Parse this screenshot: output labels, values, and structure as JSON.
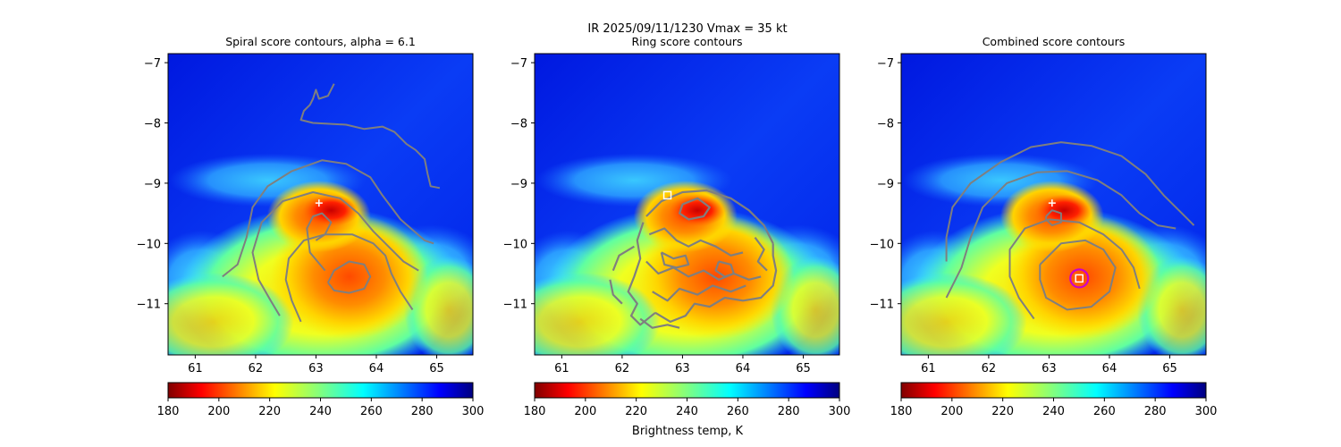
{
  "figure": {
    "suptitle": "IR  2025/09/11/1230    Vmax = 35 kt",
    "colorbar_label": "Brightness temp, K"
  },
  "colors": {
    "contour": "#7f7f7f",
    "marker": "#ffffff",
    "center_circle": "#cc00cc",
    "background": "#ffffff"
  },
  "chart_data": [
    {
      "type": "heatmap",
      "title": "Spiral score contours, alpha =  6.1",
      "xlim": [
        60.55,
        65.6
      ],
      "ylim": [
        -11.85,
        -6.85
      ],
      "xticks": [
        "61",
        "62",
        "63",
        "64",
        "65"
      ],
      "yticks": [
        "-7",
        "-8",
        "-9",
        "-10",
        "-11"
      ],
      "colormap": "jet_r",
      "clim": [
        180,
        300
      ],
      "colorbar_ticks": [
        "180",
        "200",
        "220",
        "240",
        "260",
        "280",
        "300"
      ],
      "markers": [
        {
          "kind": "plus",
          "lon": 63.05,
          "lat": -9.33
        }
      ],
      "contours": [
        [
          [
            61.45,
            -10.55
          ],
          [
            61.7,
            -10.35
          ],
          [
            61.85,
            -9.9
          ],
          [
            61.95,
            -9.4
          ],
          [
            62.2,
            -9.05
          ],
          [
            62.6,
            -8.8
          ],
          [
            63.1,
            -8.62
          ],
          [
            63.5,
            -8.68
          ],
          [
            63.9,
            -8.9
          ],
          [
            64.1,
            -9.2
          ],
          [
            64.4,
            -9.6
          ],
          [
            64.8,
            -9.95
          ],
          [
            64.95,
            -10.0
          ]
        ],
        [
          [
            62.4,
            -11.2
          ],
          [
            62.25,
            -10.95
          ],
          [
            62.05,
            -10.6
          ],
          [
            61.95,
            -10.15
          ],
          [
            62.1,
            -9.65
          ],
          [
            62.45,
            -9.3
          ],
          [
            62.95,
            -9.15
          ],
          [
            63.4,
            -9.25
          ],
          [
            63.7,
            -9.5
          ],
          [
            63.95,
            -9.8
          ],
          [
            64.2,
            -10.05
          ],
          [
            64.45,
            -10.3
          ],
          [
            64.7,
            -10.45
          ]
        ],
        [
          [
            62.75,
            -11.3
          ],
          [
            62.6,
            -10.95
          ],
          [
            62.5,
            -10.6
          ],
          [
            62.55,
            -10.25
          ],
          [
            62.8,
            -9.95
          ],
          [
            63.15,
            -9.85
          ],
          [
            63.6,
            -9.85
          ],
          [
            63.95,
            -10.0
          ],
          [
            64.15,
            -10.2
          ],
          [
            64.25,
            -10.5
          ],
          [
            64.4,
            -10.8
          ],
          [
            64.6,
            -11.1
          ]
        ],
        [
          [
            63.2,
            -10.65
          ],
          [
            63.3,
            -10.45
          ],
          [
            63.55,
            -10.3
          ],
          [
            63.8,
            -10.35
          ],
          [
            63.9,
            -10.55
          ],
          [
            63.8,
            -10.75
          ],
          [
            63.55,
            -10.82
          ],
          [
            63.3,
            -10.78
          ],
          [
            63.2,
            -10.65
          ]
        ],
        [
          [
            63.15,
            -10.45
          ],
          [
            62.9,
            -10.15
          ],
          [
            62.85,
            -9.75
          ],
          [
            62.95,
            -9.55
          ],
          [
            63.1,
            -9.5
          ],
          [
            63.25,
            -9.65
          ],
          [
            63.15,
            -9.85
          ],
          [
            63.0,
            -9.95
          ]
        ],
        [
          [
            63.3,
            -7.35
          ],
          [
            63.2,
            -7.55
          ],
          [
            63.05,
            -7.6
          ],
          [
            63.0,
            -7.45
          ],
          [
            62.95,
            -7.6
          ],
          [
            62.9,
            -7.7
          ],
          [
            62.8,
            -7.8
          ],
          [
            62.75,
            -7.95
          ],
          [
            62.95,
            -8.0
          ],
          [
            63.5,
            -8.03
          ],
          [
            63.8,
            -8.1
          ],
          [
            64.1,
            -8.06
          ],
          [
            64.3,
            -8.15
          ],
          [
            64.5,
            -8.35
          ],
          [
            64.65,
            -8.45
          ],
          [
            64.8,
            -8.6
          ],
          [
            64.85,
            -8.85
          ],
          [
            64.9,
            -9.05
          ],
          [
            65.05,
            -9.08
          ]
        ]
      ]
    },
    {
      "type": "heatmap",
      "title": "Ring score contours",
      "xlim": [
        60.55,
        65.6
      ],
      "ylim": [
        -11.85,
        -6.85
      ],
      "xticks": [
        "61",
        "62",
        "63",
        "64",
        "65"
      ],
      "yticks": [
        "-7",
        "-8",
        "-9",
        "-10",
        "-11"
      ],
      "colormap": "jet_r",
      "clim": [
        180,
        300
      ],
      "colorbar_ticks": [
        "180",
        "200",
        "220",
        "240",
        "260",
        "280",
        "300"
      ],
      "markers": [
        {
          "kind": "square",
          "lon": 62.75,
          "lat": -9.2
        }
      ],
      "contours": [
        [
          [
            62.4,
            -9.55
          ],
          [
            62.65,
            -9.3
          ],
          [
            63.0,
            -9.15
          ],
          [
            63.4,
            -9.12
          ],
          [
            63.8,
            -9.25
          ],
          [
            64.1,
            -9.45
          ],
          [
            64.35,
            -9.7
          ],
          [
            64.5,
            -10.0
          ]
        ],
        [
          [
            62.35,
            -9.65
          ],
          [
            62.25,
            -9.95
          ],
          [
            62.3,
            -10.25
          ],
          [
            62.2,
            -10.55
          ],
          [
            62.1,
            -10.8
          ],
          [
            62.25,
            -11.0
          ],
          [
            62.15,
            -11.2
          ],
          [
            62.3,
            -11.35
          ],
          [
            62.55,
            -11.15
          ]
        ],
        [
          [
            62.55,
            -11.15
          ],
          [
            62.8,
            -11.3
          ],
          [
            63.05,
            -11.2
          ],
          [
            63.2,
            -11.0
          ],
          [
            63.45,
            -11.05
          ],
          [
            63.7,
            -10.9
          ],
          [
            64.0,
            -10.95
          ],
          [
            64.3,
            -10.9
          ],
          [
            64.5,
            -10.7
          ],
          [
            64.55,
            -10.45
          ],
          [
            64.5,
            -10.2
          ],
          [
            64.5,
            -10.0
          ]
        ],
        [
          [
            61.85,
            -10.45
          ],
          [
            61.95,
            -10.2
          ],
          [
            62.2,
            -10.05
          ]
        ],
        [
          [
            61.8,
            -10.6
          ],
          [
            61.85,
            -10.85
          ],
          [
            62.0,
            -11.0
          ]
        ],
        [
          [
            62.45,
            -9.85
          ],
          [
            62.7,
            -9.75
          ],
          [
            62.9,
            -9.95
          ],
          [
            63.1,
            -10.05
          ],
          [
            63.3,
            -9.95
          ],
          [
            63.55,
            -10.05
          ],
          [
            63.8,
            -10.2
          ],
          [
            64.0,
            -10.15
          ]
        ],
        [
          [
            62.4,
            -10.3
          ],
          [
            62.6,
            -10.5
          ],
          [
            62.85,
            -10.4
          ],
          [
            63.1,
            -10.55
          ],
          [
            63.35,
            -10.45
          ],
          [
            63.6,
            -10.6
          ],
          [
            63.85,
            -10.5
          ],
          [
            64.1,
            -10.6
          ],
          [
            64.3,
            -10.55
          ]
        ],
        [
          [
            62.5,
            -10.8
          ],
          [
            62.75,
            -10.95
          ],
          [
            62.95,
            -10.75
          ],
          [
            63.25,
            -10.85
          ],
          [
            63.5,
            -10.7
          ],
          [
            63.8,
            -10.8
          ],
          [
            64.05,
            -10.7
          ]
        ],
        [
          [
            63.0,
            -9.35
          ],
          [
            63.25,
            -9.25
          ],
          [
            63.45,
            -9.4
          ],
          [
            63.35,
            -9.55
          ],
          [
            63.1,
            -9.6
          ],
          [
            62.95,
            -9.5
          ],
          [
            63.0,
            -9.35
          ]
        ],
        [
          [
            62.65,
            -10.15
          ],
          [
            62.85,
            -10.25
          ],
          [
            63.05,
            -10.2
          ],
          [
            63.1,
            -10.35
          ],
          [
            62.9,
            -10.4
          ],
          [
            62.7,
            -10.35
          ],
          [
            62.65,
            -10.15
          ]
        ],
        [
          [
            63.6,
            -10.3
          ],
          [
            63.8,
            -10.35
          ],
          [
            63.85,
            -10.5
          ],
          [
            63.7,
            -10.55
          ],
          [
            63.55,
            -10.45
          ],
          [
            63.6,
            -10.3
          ]
        ],
        [
          [
            62.3,
            -11.25
          ],
          [
            62.5,
            -11.4
          ],
          [
            62.75,
            -11.35
          ],
          [
            62.95,
            -11.4
          ]
        ],
        [
          [
            64.2,
            -9.9
          ],
          [
            64.35,
            -10.1
          ],
          [
            64.25,
            -10.3
          ],
          [
            64.4,
            -10.45
          ]
        ]
      ]
    },
    {
      "type": "heatmap",
      "title": "Combined score contours",
      "xlim": [
        60.55,
        65.6
      ],
      "ylim": [
        -11.85,
        -6.85
      ],
      "xticks": [
        "61",
        "62",
        "63",
        "64",
        "65"
      ],
      "yticks": [
        "-7",
        "-8",
        "-9",
        "-10",
        "-11"
      ],
      "colormap": "jet_r",
      "clim": [
        180,
        300
      ],
      "colorbar_ticks": [
        "180",
        "200",
        "220",
        "240",
        "260",
        "280",
        "300"
      ],
      "markers": [
        {
          "kind": "plus",
          "lon": 63.05,
          "lat": -9.33
        },
        {
          "kind": "square",
          "lon": 63.5,
          "lat": -10.58
        },
        {
          "kind": "circle",
          "lon": 63.5,
          "lat": -10.58
        }
      ],
      "contours": [
        [
          [
            61.3,
            -10.3
          ],
          [
            61.3,
            -9.9
          ],
          [
            61.4,
            -9.4
          ],
          [
            61.7,
            -9.0
          ],
          [
            62.2,
            -8.65
          ],
          [
            62.7,
            -8.4
          ],
          [
            63.2,
            -8.32
          ],
          [
            63.7,
            -8.38
          ],
          [
            64.2,
            -8.55
          ],
          [
            64.6,
            -8.85
          ],
          [
            64.9,
            -9.2
          ],
          [
            65.2,
            -9.5
          ],
          [
            65.4,
            -9.7
          ]
        ],
        [
          [
            61.3,
            -10.9
          ],
          [
            61.55,
            -10.4
          ],
          [
            61.7,
            -9.9
          ],
          [
            61.9,
            -9.4
          ],
          [
            62.3,
            -9.0
          ],
          [
            62.8,
            -8.82
          ],
          [
            63.3,
            -8.8
          ],
          [
            63.8,
            -8.95
          ],
          [
            64.2,
            -9.2
          ],
          [
            64.5,
            -9.5
          ],
          [
            64.8,
            -9.7
          ],
          [
            65.1,
            -9.75
          ]
        ],
        [
          [
            62.75,
            -11.25
          ],
          [
            62.5,
            -10.9
          ],
          [
            62.35,
            -10.55
          ],
          [
            62.35,
            -10.1
          ],
          [
            62.6,
            -9.75
          ],
          [
            63.0,
            -9.6
          ],
          [
            63.5,
            -9.65
          ],
          [
            63.9,
            -9.85
          ],
          [
            64.2,
            -10.1
          ],
          [
            64.4,
            -10.4
          ],
          [
            64.5,
            -10.75
          ]
        ],
        [
          [
            62.85,
            -10.35
          ],
          [
            63.2,
            -10.0
          ],
          [
            63.6,
            -9.95
          ],
          [
            63.9,
            -10.1
          ],
          [
            64.1,
            -10.4
          ],
          [
            64.0,
            -10.8
          ],
          [
            63.7,
            -11.05
          ],
          [
            63.3,
            -11.1
          ],
          [
            62.95,
            -10.9
          ],
          [
            62.85,
            -10.6
          ],
          [
            62.85,
            -10.35
          ]
        ],
        [
          [
            62.95,
            -9.55
          ],
          [
            63.05,
            -9.45
          ],
          [
            63.2,
            -9.5
          ],
          [
            63.2,
            -9.65
          ],
          [
            63.05,
            -9.7
          ],
          [
            62.95,
            -9.6
          ],
          [
            62.95,
            -9.55
          ]
        ]
      ]
    }
  ]
}
